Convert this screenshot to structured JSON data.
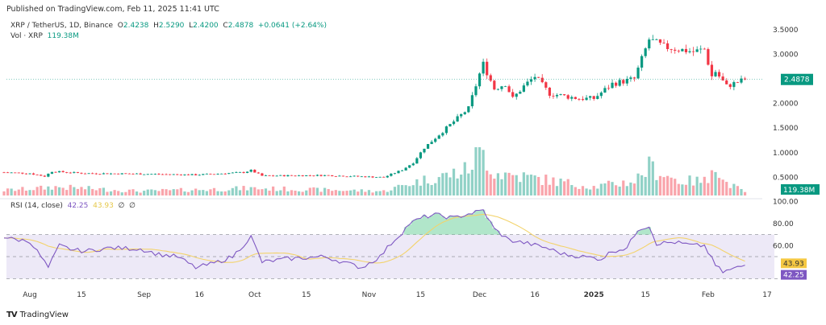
{
  "header": {
    "published": "Published on TradingView.com, Feb 11, 2025 11:41 UTC",
    "symbol": "XRP / TetherUS, 1D, Binance",
    "open_label": "O",
    "open": "2.4238",
    "high_label": "H",
    "high": "2.5290",
    "low_label": "L",
    "low": "2.4200",
    "close_label": "C",
    "close": "2.4878",
    "change": "+0.0641 (+2.64%)",
    "vol_label": "Vol · XRP",
    "vol_value": "119.38M"
  },
  "rsi_legend": {
    "label": "RSI (14, close)",
    "rsi": "42.25",
    "ma": "43.93",
    "extra1": "∅",
    "extra2": "∅"
  },
  "footer": {
    "logo_text": "TradingView"
  },
  "colors": {
    "up": "#089981",
    "down": "#f23645",
    "rsi": "#7e57c2",
    "rsi_ma": "#f3d36b",
    "band": "#ede9f7"
  },
  "chart_data": [
    {
      "type": "candlestick",
      "title": "XRP / TetherUS, 1D, Binance",
      "x_day_origin": "2024-08-01",
      "price_keypoints_day_close": [
        [
          -7,
          0.6
        ],
        [
          0,
          0.58
        ],
        [
          4,
          0.52
        ],
        [
          6,
          0.62
        ],
        [
          15,
          0.58
        ],
        [
          30,
          0.57
        ],
        [
          45,
          0.55
        ],
        [
          58,
          0.6
        ],
        [
          60,
          0.64
        ],
        [
          63,
          0.53
        ],
        [
          80,
          0.54
        ],
        [
          96,
          0.5
        ],
        [
          101,
          0.65
        ],
        [
          104,
          0.8
        ],
        [
          107,
          1.1
        ],
        [
          113,
          1.5
        ],
        [
          119,
          1.9
        ],
        [
          122,
          2.6
        ],
        [
          123,
          2.8
        ],
        [
          126,
          2.3
        ],
        [
          129,
          2.4
        ],
        [
          131,
          2.1
        ],
        [
          134,
          2.35
        ],
        [
          137,
          2.55
        ],
        [
          141,
          2.2
        ],
        [
          149,
          2.1
        ],
        [
          153,
          2.1
        ],
        [
          158,
          2.4
        ],
        [
          164,
          2.5
        ],
        [
          166,
          2.9
        ],
        [
          168,
          3.3
        ],
        [
          172,
          3.15
        ],
        [
          176,
          3.1
        ],
        [
          180,
          3.05
        ],
        [
          183,
          3.1
        ],
        [
          185,
          2.55
        ],
        [
          186,
          2.65
        ],
        [
          189,
          2.35
        ],
        [
          194,
          2.4878
        ]
      ],
      "y_ticks": [
        "3.5000",
        "3.0000",
        "2.0000",
        "1.5000",
        "1.0000",
        "0.5000"
      ],
      "y_tick_values": [
        3.5,
        3.0,
        2.0,
        1.5,
        1.0,
        0.5
      ],
      "last_price_label": "2.4878",
      "volume_keypoints_day_millions": [
        [
          -7,
          180
        ],
        [
          4,
          260
        ],
        [
          6,
          300
        ],
        [
          30,
          150
        ],
        [
          60,
          250
        ],
        [
          96,
          150
        ],
        [
          104,
          450
        ],
        [
          113,
          700
        ],
        [
          119,
          900
        ],
        [
          122,
          1700
        ],
        [
          126,
          800
        ],
        [
          137,
          600
        ],
        [
          153,
          300
        ],
        [
          164,
          500
        ],
        [
          168,
          1000
        ],
        [
          176,
          500
        ],
        [
          184,
          500
        ],
        [
          185,
          1450
        ],
        [
          188,
          500
        ],
        [
          194,
          119.38
        ]
      ],
      "volume_label": "119.38M"
    },
    {
      "type": "line",
      "title": "RSI (14, close)",
      "y_ticks": [
        "100.00",
        "80.00",
        "60.00"
      ],
      "y_tick_values": [
        100,
        80,
        60
      ],
      "bands": [
        70,
        50,
        30
      ],
      "rsi_keypoints_day_value": [
        [
          -7,
          68
        ],
        [
          -5,
          66
        ],
        [
          0,
          64
        ],
        [
          3,
          50
        ],
        [
          5,
          40
        ],
        [
          8,
          60
        ],
        [
          12,
          56
        ],
        [
          15,
          55
        ],
        [
          22,
          58
        ],
        [
          30,
          57
        ],
        [
          35,
          52
        ],
        [
          40,
          50
        ],
        [
          45,
          40
        ],
        [
          50,
          44
        ],
        [
          55,
          50
        ],
        [
          60,
          68
        ],
        [
          63,
          45
        ],
        [
          70,
          48
        ],
        [
          80,
          50
        ],
        [
          90,
          40
        ],
        [
          95,
          50
        ],
        [
          98,
          62
        ],
        [
          101,
          72
        ],
        [
          103,
          80
        ],
        [
          107,
          86
        ],
        [
          110,
          88
        ],
        [
          115,
          85
        ],
        [
          118,
          88
        ],
        [
          123,
          92
        ],
        [
          126,
          75
        ],
        [
          130,
          65
        ],
        [
          135,
          62
        ],
        [
          140,
          58
        ],
        [
          145,
          52
        ],
        [
          150,
          50
        ],
        [
          155,
          48
        ],
        [
          158,
          55
        ],
        [
          162,
          58
        ],
        [
          165,
          75
        ],
        [
          168,
          78
        ],
        [
          170,
          62
        ],
        [
          175,
          63
        ],
        [
          180,
          60
        ],
        [
          183,
          60
        ],
        [
          186,
          42
        ],
        [
          188,
          36
        ],
        [
          190,
          38
        ],
        [
          194,
          42.25
        ]
      ],
      "rsi_label": "42.25",
      "ma_label": "43.93"
    }
  ],
  "x_axis": {
    "labels": [
      "Aug",
      "15",
      "Sep",
      "16",
      "Oct",
      "15",
      "Nov",
      "15",
      "Dec",
      "16",
      "2025",
      "15",
      "Feb",
      "17"
    ],
    "label_days": [
      0,
      14,
      31,
      46,
      61,
      75,
      92,
      106,
      122,
      137,
      153,
      167,
      184,
      200
    ]
  }
}
